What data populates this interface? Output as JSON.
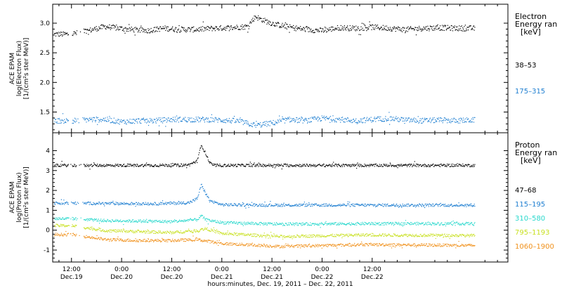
{
  "chart_data": [
    {
      "type": "scatter",
      "panel": "electron",
      "ylabel_lines": [
        "ACE EPAM",
        "log(Electron Flux)",
        "[1/(cm²s ster MeV)]"
      ],
      "legend_title_lines": [
        "Electron",
        "Energy ran",
        "[keV]"
      ],
      "ylim": [
        1.15,
        3.32
      ],
      "yticks": [
        "3.0",
        "2.5",
        "2.0",
        "1.5"
      ],
      "ytick_values": [
        3.0,
        2.5,
        2.0,
        1.5
      ],
      "series": [
        {
          "name": "38–53",
          "color": "#000000",
          "base": 2.88,
          "points": [
            [
              0,
              2.82
            ],
            [
              2,
              2.86
            ],
            [
              4,
              2.88
            ],
            [
              5,
              2.9
            ],
            [
              8,
              2.95
            ],
            [
              10,
              2.93
            ],
            [
              14,
              2.9
            ],
            [
              18,
              2.88
            ],
            [
              22,
              2.92
            ],
            [
              26,
              2.9
            ],
            [
              30,
              2.9
            ],
            [
              34,
              2.92
            ],
            [
              38,
              2.93
            ],
            [
              42,
              2.95
            ],
            [
              44,
              3.12
            ],
            [
              45,
              3.08
            ],
            [
              48,
              3.0
            ],
            [
              52,
              2.94
            ],
            [
              56,
              2.9
            ],
            [
              60,
              2.88
            ],
            [
              64,
              2.93
            ],
            [
              68,
              2.92
            ],
            [
              72,
              2.94
            ],
            [
              76,
              2.92
            ],
            [
              80,
              2.9
            ],
            [
              84,
              2.92
            ],
            [
              88,
              2.93
            ],
            [
              92,
              2.92
            ],
            [
              96,
              2.92
            ]
          ]
        },
        {
          "name": "175–315",
          "color": "#1f7fd1",
          "base": 1.36,
          "points": [
            [
              0,
              1.36
            ],
            [
              4,
              1.38
            ],
            [
              8,
              1.38
            ],
            [
              12,
              1.34
            ],
            [
              16,
              1.36
            ],
            [
              20,
              1.36
            ],
            [
              24,
              1.38
            ],
            [
              28,
              1.38
            ],
            [
              32,
              1.38
            ],
            [
              36,
              1.37
            ],
            [
              40,
              1.35
            ],
            [
              44,
              1.28
            ],
            [
              48,
              1.32
            ],
            [
              52,
              1.38
            ],
            [
              56,
              1.36
            ],
            [
              60,
              1.4
            ],
            [
              64,
              1.38
            ],
            [
              68,
              1.36
            ],
            [
              72,
              1.38
            ],
            [
              76,
              1.4
            ],
            [
              80,
              1.37
            ],
            [
              84,
              1.36
            ],
            [
              88,
              1.37
            ],
            [
              92,
              1.36
            ],
            [
              96,
              1.37
            ]
          ]
        }
      ]
    },
    {
      "type": "scatter",
      "panel": "proton",
      "ylabel_lines": [
        "ACE EPAM",
        "log(Proton Flux)",
        "[1/(cm²s ster MeV)]"
      ],
      "legend_title_lines": [
        "Proton",
        "Energy ran",
        "[keV]"
      ],
      "ylim": [
        -1.6,
        4.9
      ],
      "yticks": [
        "4",
        "3",
        "2",
        "1",
        "0",
        "-1"
      ],
      "ytick_values": [
        4,
        3,
        2,
        1,
        0,
        -1
      ],
      "series": [
        {
          "name": "47–68",
          "color": "#000000",
          "base": 3.28,
          "points": [
            [
              0,
              3.28
            ],
            [
              10,
              3.28
            ],
            [
              20,
              3.28
            ],
            [
              28,
              3.3
            ],
            [
              30,
              3.5
            ],
            [
              31,
              4.3
            ],
            [
              32,
              3.9
            ],
            [
              33,
              3.4
            ],
            [
              34,
              3.28
            ],
            [
              50,
              3.28
            ],
            [
              70,
              3.28
            ],
            [
              96,
              3.28
            ]
          ]
        },
        {
          "name": "115–195",
          "color": "#1f7fd1",
          "base": 1.3,
          "points": [
            [
              0,
              1.38
            ],
            [
              10,
              1.36
            ],
            [
              20,
              1.35
            ],
            [
              28,
              1.4
            ],
            [
              30,
              1.6
            ],
            [
              31,
              2.3
            ],
            [
              32,
              1.9
            ],
            [
              33,
              1.5
            ],
            [
              36,
              1.3
            ],
            [
              50,
              1.28
            ],
            [
              70,
              1.28
            ],
            [
              96,
              1.28
            ]
          ]
        },
        {
          "name": "310–580",
          "color": "#28d8cc",
          "base": 0.4,
          "points": [
            [
              0,
              0.6
            ],
            [
              8,
              0.5
            ],
            [
              16,
              0.48
            ],
            [
              24,
              0.45
            ],
            [
              30,
              0.55
            ],
            [
              31,
              0.75
            ],
            [
              32,
              0.55
            ],
            [
              36,
              0.4
            ],
            [
              50,
              0.32
            ],
            [
              70,
              0.35
            ],
            [
              96,
              0.35
            ]
          ]
        },
        {
          "name": "795–1193",
          "color": "#c8e020",
          "base": 0.0,
          "points": [
            [
              0,
              0.25
            ],
            [
              8,
              0.0
            ],
            [
              16,
              -0.05
            ],
            [
              24,
              -0.1
            ],
            [
              30,
              0.0
            ],
            [
              32,
              0.1
            ],
            [
              36,
              -0.15
            ],
            [
              50,
              -0.3
            ],
            [
              70,
              -0.22
            ],
            [
              96,
              -0.25
            ]
          ]
        },
        {
          "name": "1060–1900",
          "color": "#f0901a",
          "base": -0.5,
          "points": [
            [
              0,
              -0.2
            ],
            [
              8,
              -0.45
            ],
            [
              16,
              -0.5
            ],
            [
              24,
              -0.5
            ],
            [
              30,
              -0.45
            ],
            [
              36,
              -0.65
            ],
            [
              50,
              -0.8
            ],
            [
              70,
              -0.7
            ],
            [
              96,
              -0.75
            ]
          ]
        }
      ]
    }
  ],
  "xaxis": {
    "label": "hours:minutes, Dec. 19, 2011 – Dec. 22, 2011",
    "xlim_hours": [
      -4.5,
      104.5
    ],
    "ticks": [
      {
        "hours": 0,
        "time": "12:00",
        "date": "Dec.19"
      },
      {
        "hours": 12,
        "time": "0:00",
        "date": "Dec.20"
      },
      {
        "hours": 24,
        "time": "12:00",
        "date": "Dec.20"
      },
      {
        "hours": 36,
        "time": "0:00",
        "date": "Dec.21"
      },
      {
        "hours": 48,
        "time": "12:00",
        "date": "Dec.21"
      },
      {
        "hours": 60,
        "time": "0:00",
        "date": "Dec.22"
      },
      {
        "hours": 72,
        "time": "12:00",
        "date": "Dec.22"
      }
    ],
    "data_start_hours": -4.2,
    "data_end_hours": 96.5,
    "gap_hours": [
      1.2,
      0.2
    ]
  }
}
